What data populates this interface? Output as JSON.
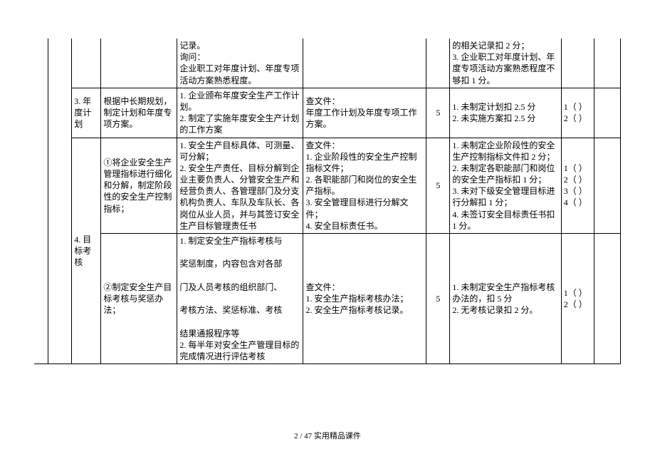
{
  "colwidths_pct": [
    2.4,
    4.0,
    5.0,
    13.0,
    21.5,
    21.0,
    4.0,
    19.0,
    5.6,
    4.5
  ],
  "footer": "2 / 47 实用精品课件",
  "rows": [
    {
      "c5": "记录。\n询问：\n企业职工对年度计划、年度专项活动方案熟悉程度。",
      "c8": "的相关记录扣 2 分；\n3. 企业职工对年度计划、年度专项活动方案熟悉程度不够扣 1 分。"
    },
    {
      "c3": "3. 年度计划",
      "c4": "根据中长期规划，制定计划和年度专项方案。",
      "c5": "1. 企业颁布年度安全生产工作计划。\n2. 制定了实施年度安全生产计划的工作方案",
      "c6_label": "查文件：",
      "c6_body": "年度工作计划及年度专项工作方案。",
      "c7": "5",
      "c8": "1. 未制定计划扣 2.5 分\n2. 未实施方案扣 2.5 分",
      "c9": "1（ ）\n2（ ）"
    },
    {
      "c3": "4. 目标考核",
      "c4": "①将企业安全生产管理指标进行细化和分解，制定阶段性的安全生产控制指标；",
      "c5": "1. 安全生产目标具体、可测量、可分解；\n2. 安全生产责任、目标分解到企业主要负责人、分管安全生产和经营负责人、各管理部门及分支机构负责人、车队及车队长、各岗位从业人员，并与其签订安全生产目标管理责任书",
      "c6_label": "查文件：",
      "c6_body": "1. 企业阶段性的安全生产控制指标文件；\n2. 各职能部门和岗位的安全生产指标。\n3. 安全管理目标进行分解文件；\n4. 安全目标责任书。",
      "c7": "5",
      "c8": "1. 未制定企业阶段性的安全生产控制指标文件扣 2 分；\n2. 未制定各职能部门和岗位的安全生产指标扣 1 分；\n3. 未对下级安全管理目标进行分解扣 1 分；\n4. 未签订安全目标责任书扣 1 分。",
      "c9": "1（ ）\n2（ ）\n3（ ）\n4（ ）"
    },
    {
      "c4": "②制定安全生产目标考核与奖惩办法；",
      "c5": "1. 制定安全生产指标考核与\n\n奖惩制度，内容包含对各部\n\n门及人员考核的组织部门、\n\n考核方法、奖惩标准、考核\n\n结果通报程序等\n2. 每半年对安全生产管理目标的完成情况进行评估考核",
      "c6_label": "查文件：",
      "c6_body": "1. 安全生产指标考核办法；\n2. 安全生产指标考核记录。",
      "c7": "5",
      "c8": "1. 未制定安全生产指标考核办法的，扣 5 分\n2. 无考核记录扣 2 分。",
      "c9": "1（ ）\n2（ ）"
    }
  ]
}
